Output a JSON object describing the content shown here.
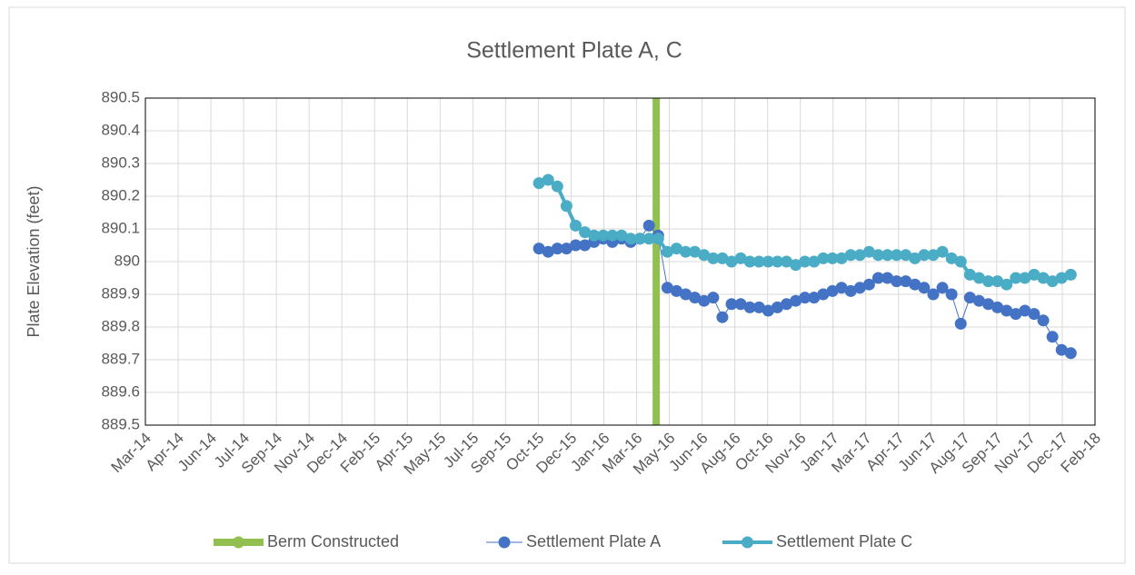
{
  "chart_data": {
    "type": "scatter",
    "title": "Settlement Plate A, C",
    "y_label": "Plate Elevation (feet)",
    "xlim": [
      41699,
      43149
    ],
    "xticks": [
      {
        "value": 41699,
        "label": "Mar-14"
      },
      {
        "value": 41749,
        "label": "Apr-14"
      },
      {
        "value": 41799,
        "label": "Jun-14"
      },
      {
        "value": 41849,
        "label": "Jul-14"
      },
      {
        "value": 41899,
        "label": "Sep-14"
      },
      {
        "value": 41949,
        "label": "Nov-14"
      },
      {
        "value": 41999,
        "label": "Dec-14"
      },
      {
        "value": 42049,
        "label": "Feb-15"
      },
      {
        "value": 42099,
        "label": "Apr-15"
      },
      {
        "value": 42149,
        "label": "May-15"
      },
      {
        "value": 42199,
        "label": "Jul-15"
      },
      {
        "value": 42249,
        "label": "Sep-15"
      },
      {
        "value": 42299,
        "label": "Oct-15"
      },
      {
        "value": 42349,
        "label": "Dec-15"
      },
      {
        "value": 42399,
        "label": "Jan-16"
      },
      {
        "value": 42449,
        "label": "Mar-16"
      },
      {
        "value": 42499,
        "label": "May-16"
      },
      {
        "value": 42549,
        "label": "Jun-16"
      },
      {
        "value": 42599,
        "label": "Aug-16"
      },
      {
        "value": 42649,
        "label": "Oct-16"
      },
      {
        "value": 42699,
        "label": "Nov-16"
      },
      {
        "value": 42749,
        "label": "Jan-17"
      },
      {
        "value": 42799,
        "label": "Mar-17"
      },
      {
        "value": 42849,
        "label": "Apr-17"
      },
      {
        "value": 42899,
        "label": "Jun-17"
      },
      {
        "value": 42949,
        "label": "Aug-17"
      },
      {
        "value": 42999,
        "label": "Sep-17"
      },
      {
        "value": 43049,
        "label": "Nov-17"
      },
      {
        "value": 43099,
        "label": "Dec-17"
      },
      {
        "value": 43149,
        "label": "Feb-18"
      }
    ],
    "ylim": [
      889.5,
      890.5
    ],
    "yticks": [
      889.5,
      889.6,
      889.7,
      889.8,
      889.9,
      890,
      890.1,
      890.2,
      890.3,
      890.4,
      890.5
    ],
    "grid": true,
    "legend": "bottom",
    "series": [
      {
        "name": "Berm Constructed",
        "color": "#92c050",
        "x": [
          42479,
          42479
        ],
        "values": [
          889.5,
          890.5
        ]
      },
      {
        "name": "Settlement Plate A",
        "color": "#4472c4",
        "x": [
          42300,
          42314,
          42328,
          42342,
          42356,
          42370,
          42384,
          42398,
          42412,
          42426,
          42440,
          42454,
          42468,
          42482,
          42496,
          42510,
          42524,
          42538,
          42552,
          42566,
          42580,
          42594,
          42608,
          42622,
          42636,
          42650,
          42664,
          42678,
          42692,
          42706,
          42720,
          42734,
          42748,
          42762,
          42776,
          42790,
          42804,
          42818,
          42832,
          42846,
          42860,
          42874,
          42888,
          42902,
          42916,
          42930,
          42944,
          42958,
          42972,
          42986,
          43000,
          43014,
          43028,
          43042,
          43056,
          43070,
          43084,
          43098,
          43112
        ],
        "values": [
          890.04,
          890.03,
          890.04,
          890.04,
          890.05,
          890.05,
          890.06,
          890.07,
          890.06,
          890.07,
          890.06,
          890.07,
          890.11,
          890.08,
          889.92,
          889.91,
          889.9,
          889.89,
          889.88,
          889.89,
          889.83,
          889.87,
          889.87,
          889.86,
          889.86,
          889.85,
          889.86,
          889.87,
          889.88,
          889.89,
          889.89,
          889.9,
          889.91,
          889.92,
          889.91,
          889.92,
          889.93,
          889.95,
          889.95,
          889.94,
          889.94,
          889.93,
          889.92,
          889.9,
          889.92,
          889.9,
          889.81,
          889.89,
          889.88,
          889.87,
          889.86,
          889.85,
          889.84,
          889.85,
          889.84,
          889.82,
          889.77,
          889.73,
          889.72
        ]
      },
      {
        "name": "Settlement Plate C",
        "color": "#4bacc6",
        "x": [
          42300,
          42314,
          42328,
          42342,
          42356,
          42370,
          42384,
          42398,
          42412,
          42426,
          42440,
          42454,
          42468,
          42482,
          42496,
          42510,
          42524,
          42538,
          42552,
          42566,
          42580,
          42594,
          42608,
          42622,
          42636,
          42650,
          42664,
          42678,
          42692,
          42706,
          42720,
          42734,
          42748,
          42762,
          42776,
          42790,
          42804,
          42818,
          42832,
          42846,
          42860,
          42874,
          42888,
          42902,
          42916,
          42930,
          42944,
          42958,
          42972,
          42986,
          43000,
          43014,
          43028,
          43042,
          43056,
          43070,
          43084,
          43098,
          43112
        ],
        "values": [
          890.24,
          890.25,
          890.23,
          890.17,
          890.11,
          890.09,
          890.08,
          890.08,
          890.08,
          890.08,
          890.07,
          890.07,
          890.07,
          890.07,
          890.03,
          890.04,
          890.03,
          890.03,
          890.02,
          890.01,
          890.01,
          890.0,
          890.01,
          890.0,
          890.0,
          890.0,
          890.0,
          890.0,
          889.99,
          890.0,
          890.0,
          890.01,
          890.01,
          890.01,
          890.02,
          890.02,
          890.03,
          890.02,
          890.02,
          890.02,
          890.02,
          890.01,
          890.02,
          890.02,
          890.03,
          890.01,
          890.0,
          889.96,
          889.95,
          889.94,
          889.94,
          889.93,
          889.95,
          889.95,
          889.96,
          889.95,
          889.94,
          889.95,
          889.96
        ]
      }
    ]
  }
}
